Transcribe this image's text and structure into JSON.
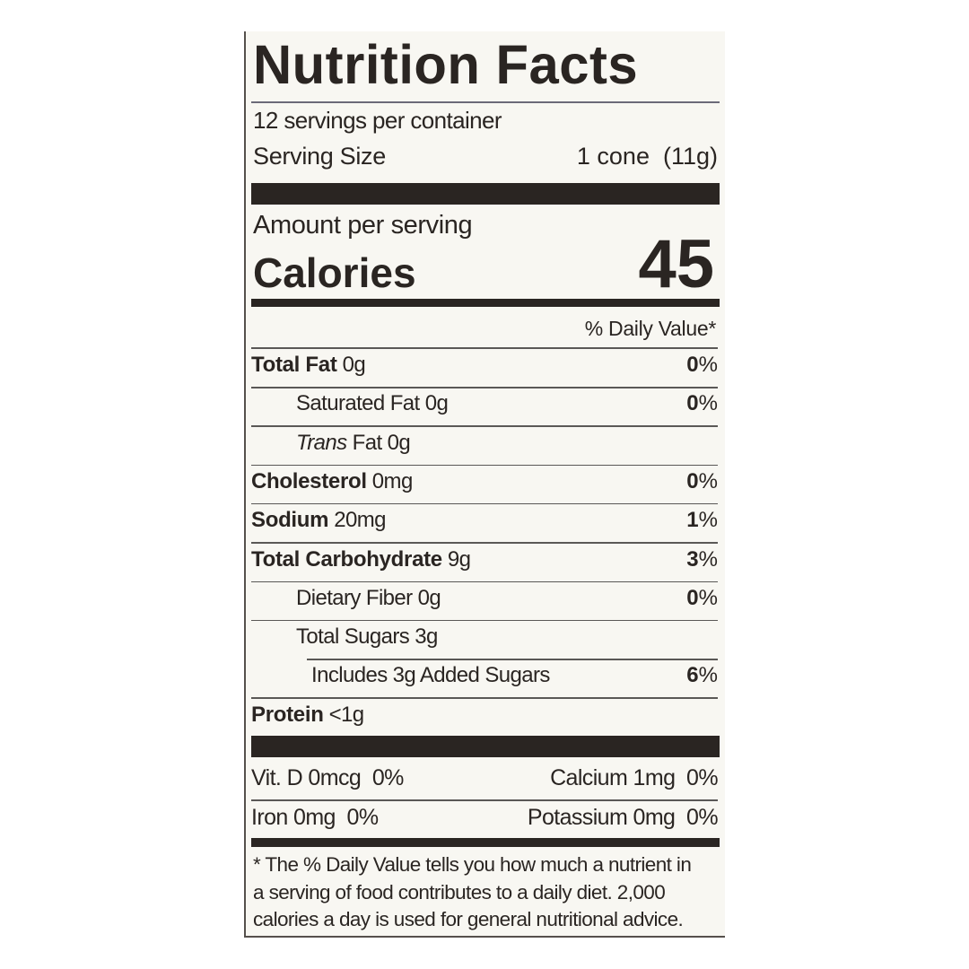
{
  "title": "Nutrition Facts",
  "servings_per_container": "12 servings per container",
  "serving_size": {
    "label": "Serving Size",
    "value": "1 cone  (11g)"
  },
  "amount_per_serving": "Amount per serving",
  "calories": {
    "label": "Calories",
    "value": "45"
  },
  "daily_value_header": "% Daily Value*",
  "nutrients": [
    {
      "name": "Total Fat",
      "amount": "0g",
      "dv": "0",
      "bold": true,
      "indent": 0
    },
    {
      "name": "Saturated Fat",
      "amount": "0g",
      "dv": "0",
      "bold": false,
      "indent": 1
    },
    {
      "name": "Trans",
      "name_suffix": "Fat",
      "amount": "0g",
      "dv": "",
      "bold": false,
      "indent": 1,
      "italic": true
    },
    {
      "name": "Cholesterol",
      "amount": "0mg",
      "dv": "0",
      "bold": true,
      "indent": 0
    },
    {
      "name": "Sodium",
      "amount": "20mg",
      "dv": "1",
      "bold": true,
      "indent": 0
    },
    {
      "name": "Total Carbohydrate",
      "amount": "9g",
      "dv": "3",
      "bold": true,
      "indent": 0
    },
    {
      "name": "Dietary Fiber",
      "amount": "0g",
      "dv": "0",
      "bold": false,
      "indent": 1
    },
    {
      "name": "Total Sugars",
      "amount": "3g",
      "dv": "",
      "bold": false,
      "indent": 1
    },
    {
      "name": "Includes 3g Added Sugars",
      "amount": "",
      "dv": "6",
      "bold": false,
      "indent": 2
    },
    {
      "name": "Protein",
      "amount": "<1g",
      "dv": "",
      "bold": true,
      "indent": 0
    }
  ],
  "percent_sign": "%",
  "vitamins": [
    {
      "left": "Vit. D 0mcg  0%",
      "right": "Calcium 1mg  0%"
    },
    {
      "left": "Iron 0mg  0%",
      "right": "Potassium 0mg  0%"
    }
  ],
  "footnote": [
    "* The % Daily Value tells you how much a nutrient in",
    "a serving of food contributes to a daily diet. 2,000",
    "calories a day is used for general nutritional advice."
  ]
}
